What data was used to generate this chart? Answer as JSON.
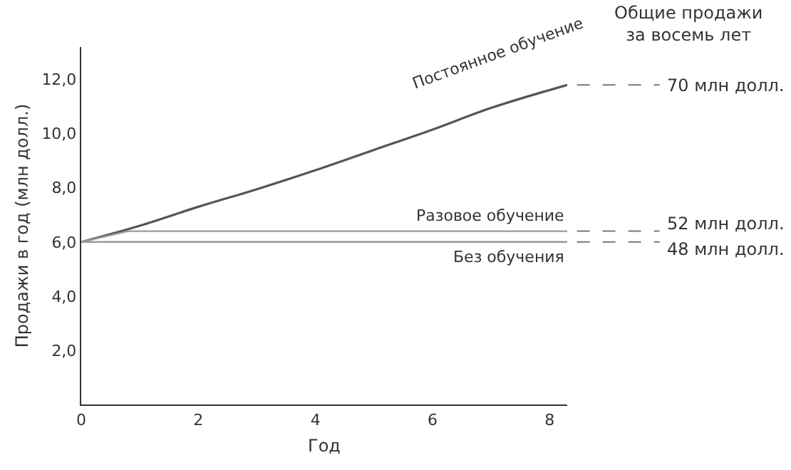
{
  "chart_data": {
    "type": "line",
    "xlabel": "Год",
    "ylabel": "Продажи в год (млн долл.)",
    "xlim": [
      0,
      8.3
    ],
    "ylim": [
      0,
      13.2
    ],
    "xticks": [
      0,
      2,
      4,
      6,
      8
    ],
    "yticks": [
      {
        "value": 2,
        "label": "2,0"
      },
      {
        "value": 4,
        "label": "4,0"
      },
      {
        "value": 6,
        "label": "6,0"
      },
      {
        "value": 8,
        "label": "8,0"
      },
      {
        "value": 10,
        "label": "10,0"
      },
      {
        "value": 12,
        "label": "12,0"
      }
    ],
    "legend": false,
    "marker": "none",
    "line_style": "solid",
    "series": [
      {
        "name": "Постоянное обучение",
        "color": "#555555",
        "x": [
          0,
          1,
          2,
          3,
          4,
          5,
          6,
          7,
          8.3
        ],
        "values": [
          6.0,
          6.6,
          7.3,
          7.95,
          8.65,
          9.4,
          10.15,
          10.95,
          11.8
        ]
      },
      {
        "name": "Разовое обучение",
        "color": "#999999",
        "x": [
          0,
          0.8,
          8.3
        ],
        "values": [
          6.0,
          6.4,
          6.4
        ]
      },
      {
        "name": "Без обучения",
        "color": "#999999",
        "x": [
          0,
          8.3
        ],
        "values": [
          6.0,
          6.0
        ]
      }
    ],
    "annotations": [
      "Общие продажи\nза восемь лет",
      "70 млн долл.",
      "52 млн долл.",
      "48 млн долл."
    ]
  }
}
